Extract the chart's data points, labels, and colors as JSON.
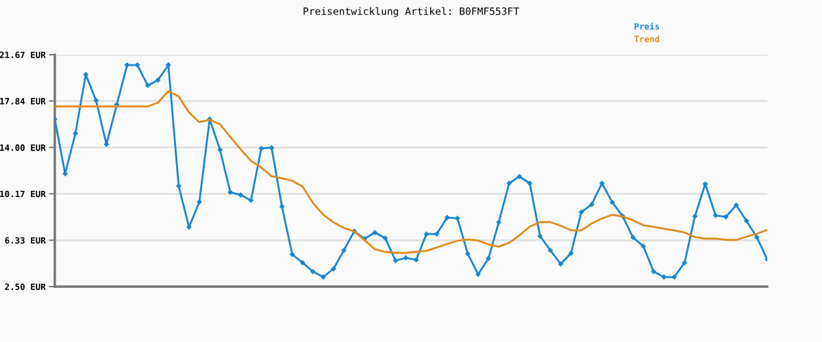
{
  "chart_data": {
    "type": "line",
    "title": "Preisentwicklung Artikel: B0FMF553FT",
    "categories": [
      null,
      null,
      null,
      null,
      null,
      null,
      null,
      null,
      null,
      null,
      null,
      null,
      null,
      null,
      null,
      null,
      null,
      null,
      null,
      null,
      null,
      null,
      null,
      null,
      null,
      null,
      null,
      null,
      null,
      null,
      null,
      null,
      null,
      null,
      null,
      null,
      null,
      null,
      null,
      null,
      null,
      null,
      null,
      null,
      null,
      null,
      null,
      null,
      null,
      null,
      null,
      null,
      null,
      null,
      null,
      null,
      null,
      null,
      null,
      null,
      null,
      null,
      null,
      null,
      null,
      null,
      null,
      null,
      null,
      null
    ],
    "series": [
      {
        "name": "Preis",
        "color": "#1a86d0",
        "marker": "diamond",
        "values": [
          16.35,
          11.83,
          15.17,
          20.03,
          17.88,
          14.26,
          17.54,
          20.82,
          20.82,
          19.13,
          19.58,
          20.82,
          10.81,
          7.42,
          9.51,
          16.35,
          13.81,
          10.3,
          10.08,
          9.63,
          13.92,
          13.98,
          9.12,
          5.16,
          4.48,
          3.74,
          3.29,
          3.97,
          5.5,
          7.08,
          6.46,
          6.97,
          6.51,
          4.65,
          4.88,
          4.71,
          6.85,
          6.85,
          8.21,
          8.15,
          5.21,
          3.52,
          4.82,
          7.81,
          11.04,
          11.6,
          11.04,
          6.68,
          5.5,
          4.37,
          5.27,
          8.66,
          9.29,
          11.04,
          9.46,
          8.32,
          6.57,
          5.84,
          3.74,
          3.29,
          3.29,
          4.48,
          8.32,
          10.98,
          8.38,
          8.27,
          9.23,
          7.93,
          6.57,
          4.76
        ]
      },
      {
        "name": "Trend",
        "color": "#e08a1e",
        "marker": "none",
        "values": [
          17.39,
          17.39,
          17.39,
          17.39,
          17.39,
          17.39,
          17.39,
          17.39,
          17.39,
          17.39,
          17.71,
          18.66,
          18.22,
          16.9,
          16.09,
          16.3,
          15.92,
          14.88,
          13.85,
          12.9,
          12.34,
          11.62,
          11.46,
          11.25,
          10.77,
          9.42,
          8.44,
          7.81,
          7.35,
          7.06,
          6.34,
          5.59,
          5.37,
          5.29,
          5.29,
          5.37,
          5.46,
          5.74,
          6.02,
          6.29,
          6.4,
          6.31,
          5.99,
          5.8,
          6.12,
          6.74,
          7.46,
          7.83,
          7.83,
          7.53,
          7.15,
          7.15,
          7.72,
          8.14,
          8.44,
          8.29,
          7.99,
          7.57,
          7.44,
          7.29,
          7.15,
          6.97,
          6.59,
          6.46,
          6.46,
          6.36,
          6.36,
          6.63,
          6.87,
          7.19
        ]
      }
    ],
    "ylim": [
      2.5,
      21.67
    ],
    "yticks": [
      {
        "value": 2.5,
        "label": "2.50 EUR"
      },
      {
        "value": 6.33,
        "label": "6.33 EUR"
      },
      {
        "value": 10.17,
        "label": "10.17 EUR"
      },
      {
        "value": 14.0,
        "label": "14.00 EUR"
      },
      {
        "value": 17.84,
        "label": "17.84 EUR"
      },
      {
        "value": 21.67,
        "label": "21.67 EUR"
      }
    ],
    "grid": "y",
    "legend": "top right",
    "tick_labels": "y"
  }
}
